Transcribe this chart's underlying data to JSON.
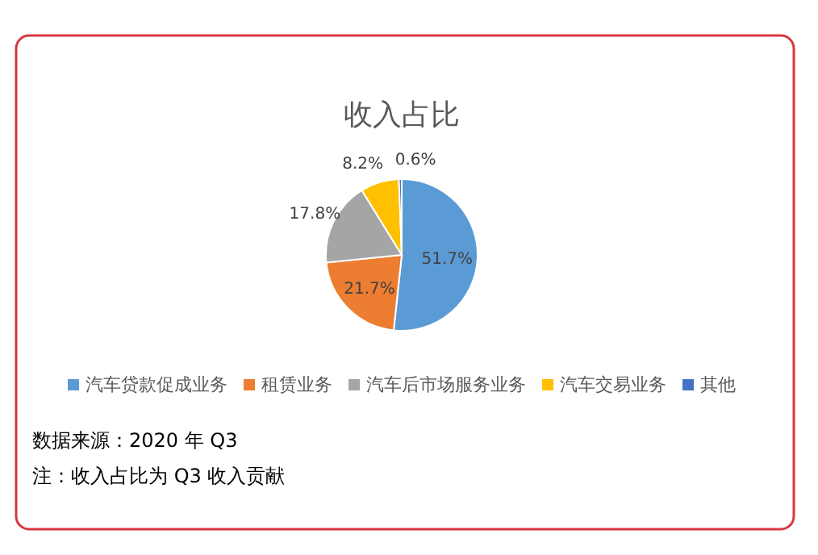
{
  "chart_data": {
    "type": "pie",
    "title": "收入占比",
    "categories": [
      "汽车贷款促成业务",
      "租赁业务",
      "汽车后市场服务业务",
      "汽车交易业务",
      "其他"
    ],
    "values": [
      51.7,
      21.7,
      17.8,
      8.2,
      0.6
    ],
    "colors": [
      "#5b9bd5",
      "#ed7d31",
      "#a5a5a5",
      "#ffc000",
      "#4472c4"
    ],
    "value_labels": [
      "51.7%",
      "21.7%",
      "17.8%",
      "8.2%",
      "0.6%"
    ],
    "legend": "bottom",
    "annotations": [
      "数据来源：2020 年 Q3",
      "注：收入占比为 Q3 收入贡献"
    ]
  }
}
